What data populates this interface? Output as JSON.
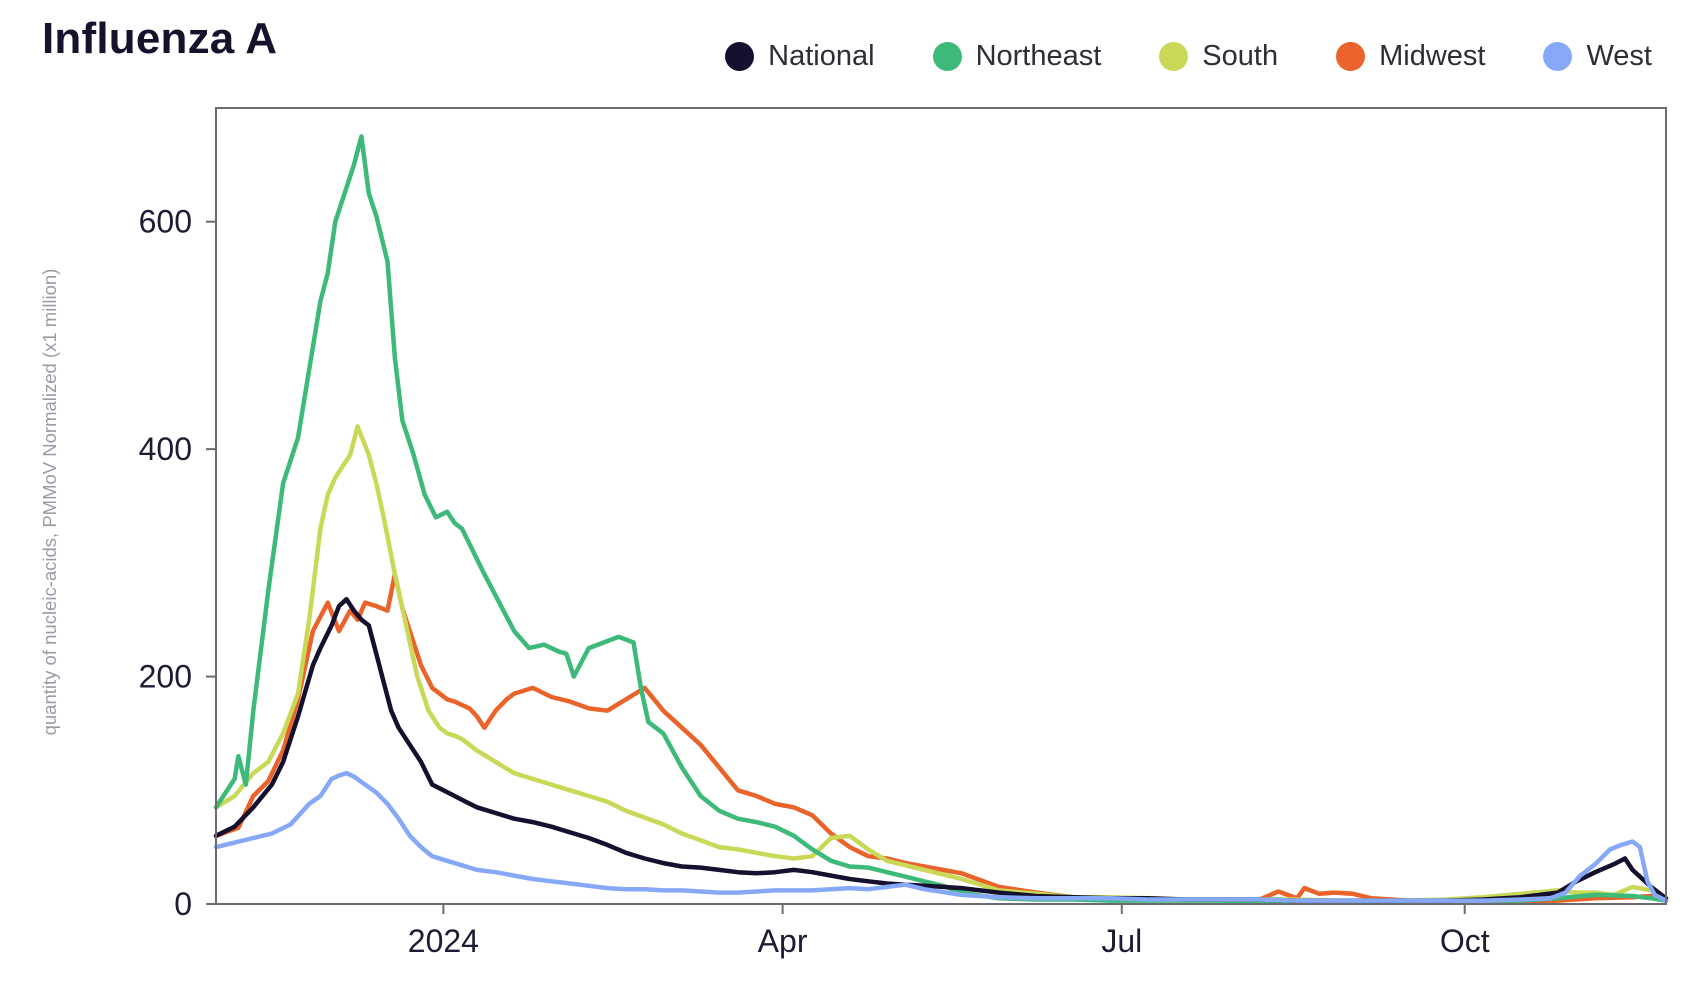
{
  "title": "Influenza A",
  "legend": [
    {
      "name": "National",
      "color": "#14102e"
    },
    {
      "name": "Northeast",
      "color": "#3dba79"
    },
    {
      "name": "South",
      "color": "#c9d957"
    },
    {
      "name": "Midwest",
      "color": "#e9632a"
    },
    {
      "name": "West",
      "color": "#86a9f7"
    }
  ],
  "chart_data": {
    "type": "line",
    "title": "Influenza A",
    "xlabel": "",
    "ylabel": "quantity of nucleic-acids, PMMoV Normalized (x1 million)",
    "x_unit": "days since 2023-11-01",
    "xlim": [
      0,
      389
    ],
    "ylim": [
      0,
      700
    ],
    "yticks": [
      0,
      200,
      400,
      600
    ],
    "xticks": [
      {
        "value": 61,
        "label": "2024"
      },
      {
        "value": 152,
        "label": "Apr"
      },
      {
        "value": 243,
        "label": "Jul"
      },
      {
        "value": 335,
        "label": "Oct"
      }
    ],
    "grid": false,
    "series": [
      {
        "name": "Midwest",
        "color": "#e9632a",
        "x": [
          0,
          6,
          10,
          14,
          18,
          22,
          26,
          30,
          33,
          36,
          38,
          40,
          43,
          46,
          48,
          50,
          52,
          55,
          58,
          60,
          62,
          64,
          66,
          68,
          70,
          72,
          75,
          78,
          80,
          85,
          90,
          95,
          100,
          105,
          110,
          115,
          120,
          125,
          130,
          135,
          140,
          145,
          150,
          155,
          160,
          165,
          170,
          175,
          180,
          185,
          190,
          195,
          200,
          210,
          220,
          230,
          240,
          250,
          260,
          270,
          280,
          285,
          290,
          292,
          296,
          300,
          305,
          310,
          320,
          330,
          340,
          350,
          360,
          370,
          380,
          385,
          389
        ],
        "y": [
          60,
          67,
          95,
          108,
          135,
          180,
          240,
          265,
          240,
          258,
          250,
          265,
          262,
          258,
          290,
          260,
          240,
          210,
          190,
          185,
          180,
          178,
          175,
          172,
          165,
          155,
          170,
          180,
          185,
          190,
          182,
          178,
          172,
          170,
          180,
          190,
          170,
          155,
          140,
          120,
          100,
          95,
          88,
          85,
          78,
          62,
          50,
          42,
          40,
          36,
          33,
          30,
          27,
          15,
          10,
          6,
          5,
          4,
          4,
          4,
          4,
          11,
          5,
          14,
          9,
          10,
          9,
          5,
          3,
          3,
          2,
          2,
          3,
          5,
          6,
          7,
          3
        ]
      },
      {
        "name": "South",
        "color": "#c9d957",
        "x": [
          0,
          5,
          10,
          14,
          18,
          22,
          25,
          28,
          30,
          32,
          34,
          36,
          38,
          41,
          43,
          45,
          48,
          51,
          54,
          57,
          60,
          62,
          64,
          66,
          68,
          70,
          75,
          80,
          85,
          90,
          95,
          100,
          105,
          110,
          115,
          120,
          125,
          130,
          135,
          140,
          145,
          150,
          155,
          160,
          165,
          170,
          175,
          180,
          185,
          190,
          195,
          200,
          210,
          220,
          230,
          240,
          250,
          260,
          270,
          280,
          290,
          300,
          310,
          320,
          330,
          340,
          350,
          360,
          365,
          370,
          375,
          380,
          385,
          389
        ],
        "y": [
          85,
          95,
          115,
          125,
          150,
          185,
          250,
          330,
          360,
          375,
          385,
          395,
          420,
          395,
          370,
          340,
          290,
          245,
          200,
          170,
          155,
          150,
          148,
          145,
          140,
          135,
          125,
          115,
          110,
          105,
          100,
          95,
          90,
          82,
          76,
          70,
          62,
          56,
          50,
          48,
          45,
          42,
          40,
          42,
          58,
          60,
          48,
          38,
          34,
          30,
          26,
          22,
          12,
          9,
          6,
          6,
          5,
          4,
          4,
          4,
          4,
          3,
          3,
          3,
          4,
          6,
          9,
          12,
          10,
          10,
          8,
          15,
          12,
          5
        ]
      },
      {
        "name": "Northeast",
        "color": "#3dba79",
        "x": [
          0,
          3,
          5,
          6,
          8,
          10,
          14,
          18,
          22,
          25,
          28,
          30,
          32,
          35,
          37,
          39,
          41,
          43,
          46,
          48,
          50,
          53,
          56,
          59,
          62,
          64,
          66,
          69,
          72,
          76,
          80,
          84,
          88,
          92,
          94,
          96,
          100,
          104,
          108,
          112,
          114,
          116,
          120,
          125,
          130,
          135,
          140,
          145,
          150,
          155,
          160,
          165,
          170,
          175,
          180,
          185,
          190,
          195,
          200,
          210,
          220,
          230,
          240,
          250,
          260,
          270,
          280,
          290,
          300,
          310,
          320,
          330,
          340,
          350,
          360,
          370,
          380,
          385,
          389
        ],
        "y": [
          85,
          100,
          110,
          130,
          105,
          170,
          275,
          370,
          410,
          470,
          530,
          555,
          600,
          630,
          650,
          675,
          625,
          605,
          565,
          480,
          425,
          395,
          360,
          340,
          345,
          335,
          330,
          310,
          290,
          265,
          240,
          225,
          228,
          222,
          220,
          200,
          225,
          230,
          235,
          230,
          190,
          160,
          150,
          120,
          95,
          82,
          75,
          72,
          68,
          60,
          48,
          38,
          33,
          32,
          28,
          24,
          20,
          16,
          10,
          5,
          4,
          4,
          3,
          3,
          3,
          3,
          2,
          2,
          2,
          3,
          2,
          3,
          3,
          3,
          5,
          8,
          7,
          5,
          3
        ]
      },
      {
        "name": "National",
        "color": "#14102e",
        "x": [
          0,
          5,
          10,
          15,
          18,
          22,
          26,
          28,
          31,
          33,
          35,
          37,
          39,
          41,
          43,
          45,
          47,
          49,
          52,
          55,
          58,
          61,
          64,
          67,
          70,
          75,
          80,
          85,
          90,
          95,
          100,
          105,
          110,
          115,
          120,
          125,
          130,
          135,
          140,
          145,
          150,
          155,
          160,
          165,
          170,
          175,
          180,
          185,
          190,
          195,
          200,
          210,
          220,
          230,
          240,
          250,
          260,
          270,
          280,
          290,
          300,
          310,
          320,
          330,
          340,
          350,
          360,
          365,
          370,
          375,
          378,
          380,
          385,
          389
        ],
        "y": [
          60,
          68,
          85,
          105,
          125,
          165,
          210,
          225,
          245,
          262,
          268,
          258,
          250,
          245,
          220,
          195,
          170,
          155,
          140,
          125,
          105,
          100,
          95,
          90,
          85,
          80,
          75,
          72,
          68,
          63,
          58,
          52,
          45,
          40,
          36,
          33,
          32,
          30,
          28,
          27,
          28,
          30,
          28,
          25,
          22,
          20,
          18,
          17,
          16,
          15,
          14,
          10,
          7,
          6,
          5,
          5,
          4,
          4,
          4,
          3,
          3,
          3,
          3,
          3,
          4,
          6,
          10,
          20,
          28,
          35,
          40,
          30,
          15,
          5
        ]
      },
      {
        "name": "West",
        "color": "#86a9f7",
        "x": [
          0,
          5,
          10,
          15,
          20,
          25,
          28,
          31,
          33,
          35,
          37,
          40,
          43,
          46,
          49,
          52,
          55,
          58,
          62,
          66,
          70,
          75,
          80,
          85,
          90,
          95,
          100,
          105,
          110,
          115,
          120,
          125,
          130,
          135,
          140,
          145,
          150,
          155,
          160,
          165,
          170,
          175,
          180,
          185,
          190,
          200,
          210,
          220,
          230,
          240,
          250,
          260,
          270,
          280,
          290,
          300,
          310,
          320,
          330,
          340,
          350,
          358,
          362,
          366,
          370,
          374,
          377,
          380,
          382,
          384,
          386,
          389
        ],
        "y": [
          50,
          54,
          58,
          62,
          70,
          88,
          95,
          110,
          113,
          115,
          112,
          105,
          98,
          88,
          75,
          60,
          50,
          42,
          38,
          34,
          30,
          28,
          25,
          22,
          20,
          18,
          16,
          14,
          13,
          13,
          12,
          12,
          11,
          10,
          10,
          11,
          12,
          12,
          12,
          13,
          14,
          13,
          15,
          17,
          13,
          8,
          6,
          5,
          5,
          5,
          4,
          4,
          4,
          4,
          3,
          3,
          3,
          3,
          3,
          3,
          4,
          5,
          10,
          25,
          35,
          48,
          52,
          55,
          50,
          20,
          8,
          3
        ]
      }
    ]
  }
}
